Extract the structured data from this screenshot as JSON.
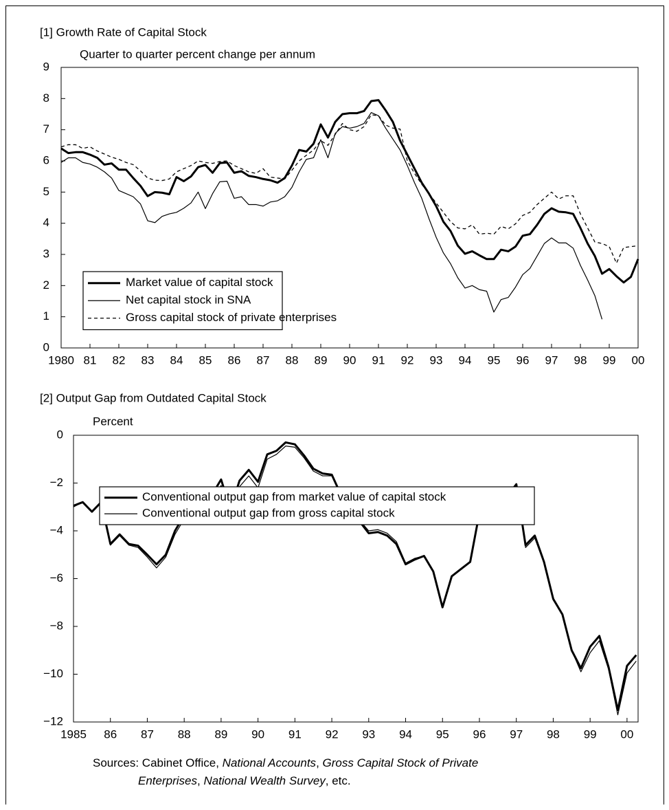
{
  "chart_data": [
    {
      "type": "line",
      "title": "[1] Growth Rate of Capital Stock",
      "ylabel": "Quarter to quarter percent change per annum",
      "x": [
        1980,
        1980.25,
        1980.5,
        1980.75,
        1981,
        1981.25,
        1981.5,
        1981.75,
        1982,
        1982.25,
        1982.5,
        1982.75,
        1983,
        1983.25,
        1983.5,
        1983.75,
        1984,
        1984.25,
        1984.5,
        1984.75,
        1985,
        1985.25,
        1985.5,
        1985.75,
        1986,
        1986.25,
        1986.5,
        1986.75,
        1987,
        1987.25,
        1987.5,
        1987.75,
        1988,
        1988.25,
        1988.5,
        1988.75,
        1989,
        1989.25,
        1989.5,
        1989.75,
        1990,
        1990.25,
        1990.5,
        1990.75,
        1991,
        1991.25,
        1991.5,
        1991.75,
        1992,
        1992.25,
        1992.5,
        1992.75,
        1993,
        1993.25,
        1993.5,
        1993.75,
        1994,
        1994.25,
        1994.5,
        1994.75,
        1995,
        1995.25,
        1995.5,
        1995.75,
        1996,
        1996.25,
        1996.5,
        1996.75,
        1997,
        1997.25,
        1997.5,
        1997.75,
        1998,
        1998.25,
        1998.5,
        1998.75,
        1999,
        1999.25,
        1999.5,
        1999.75,
        2000
      ],
      "series": [
        {
          "name": "Market value of capital stock",
          "color": "#000000",
          "style": "thick",
          "values": [
            6.4,
            6.25,
            6.28,
            6.28,
            6.2,
            6.1,
            5.88,
            5.92,
            5.72,
            5.72,
            5.45,
            5.2,
            4.87,
            5.0,
            4.98,
            4.93,
            5.48,
            5.35,
            5.5,
            5.8,
            5.87,
            5.62,
            5.93,
            5.95,
            5.62,
            5.67,
            5.52,
            5.48,
            5.42,
            5.38,
            5.3,
            5.45,
            5.85,
            6.35,
            6.3,
            6.55,
            7.17,
            6.75,
            7.25,
            7.5,
            7.53,
            7.53,
            7.6,
            7.92,
            7.95,
            7.62,
            7.25,
            6.65,
            6.2,
            5.75,
            5.3,
            4.95,
            4.55,
            4.05,
            3.75,
            3.28,
            3.02,
            3.1,
            2.97,
            2.85,
            2.85,
            3.15,
            3.1,
            3.25,
            3.6,
            3.65,
            3.95,
            4.3,
            4.48,
            4.37,
            4.35,
            4.3,
            3.85,
            3.35,
            2.95,
            2.38,
            2.53,
            2.3,
            2.1,
            2.28,
            2.85
          ]
        },
        {
          "name": "Net capital stock in SNA",
          "color": "#000000",
          "style": "thin",
          "values": [
            5.95,
            6.1,
            6.1,
            5.95,
            5.9,
            5.8,
            5.65,
            5.45,
            5.05,
            4.95,
            4.85,
            4.62,
            4.08,
            4.02,
            4.22,
            4.3,
            4.35,
            4.48,
            4.65,
            5.0,
            4.47,
            4.95,
            5.33,
            5.35,
            4.8,
            4.85,
            4.6,
            4.6,
            4.55,
            4.68,
            4.72,
            4.85,
            5.15,
            5.65,
            6.05,
            6.1,
            6.68,
            6.1,
            6.88,
            7.1,
            7.05,
            7.1,
            7.2,
            7.55,
            7.45,
            7.05,
            6.7,
            6.35,
            5.85,
            5.3,
            4.8,
            4.15,
            3.55,
            3.05,
            2.7,
            2.25,
            1.92,
            2.0,
            1.87,
            1.82,
            1.15,
            1.55,
            1.62,
            1.95,
            2.35,
            2.55,
            2.95,
            3.35,
            3.53,
            3.37,
            3.37,
            3.2,
            2.65,
            2.18,
            1.68,
            0.92,
            null,
            null,
            null,
            null,
            null
          ]
        },
        {
          "name": "Gross capital stock of private enterprises",
          "color": "#000000",
          "style": "dashed",
          "values": [
            6.45,
            6.52,
            6.52,
            6.4,
            6.45,
            6.32,
            6.22,
            6.12,
            6.05,
            5.95,
            5.88,
            5.68,
            5.45,
            5.38,
            5.37,
            5.42,
            5.65,
            5.75,
            5.85,
            6.0,
            5.95,
            5.92,
            5.98,
            6.0,
            5.85,
            5.75,
            5.65,
            5.6,
            5.75,
            5.48,
            5.45,
            5.42,
            5.7,
            6.0,
            6.18,
            6.35,
            6.65,
            6.5,
            6.85,
            7.2,
            7.0,
            6.95,
            7.1,
            7.48,
            7.45,
            7.15,
            7.05,
            7.02,
            6.0,
            5.6,
            5.25,
            4.95,
            4.65,
            4.35,
            4.05,
            3.85,
            3.82,
            3.95,
            3.65,
            3.68,
            3.65,
            3.9,
            3.82,
            3.98,
            4.25,
            4.35,
            4.6,
            4.8,
            5.0,
            4.78,
            4.88,
            4.88,
            4.3,
            3.85,
            3.4,
            3.35,
            3.25,
            2.72,
            3.22,
            3.25,
            3.28
          ]
        }
      ],
      "xlim": [
        1980,
        2000
      ],
      "ylim": [
        0,
        9
      ],
      "xticks": [
        1980,
        {
          "value": 1981,
          "label": "81"
        },
        {
          "value": 1982,
          "label": "82"
        },
        {
          "value": 1983,
          "label": "83"
        },
        {
          "value": 1984,
          "label": "84"
        },
        {
          "value": 1985,
          "label": "85"
        },
        {
          "value": 1986,
          "label": "86"
        },
        {
          "value": 1987,
          "label": "87"
        },
        {
          "value": 1988,
          "label": "88"
        },
        {
          "value": 1989,
          "label": "89"
        },
        {
          "value": 1990,
          "label": "90"
        },
        {
          "value": 1991,
          "label": "91"
        },
        {
          "value": 1992,
          "label": "92"
        },
        {
          "value": 1993,
          "label": "93"
        },
        {
          "value": 1994,
          "label": "94"
        },
        {
          "value": 1995,
          "label": "95"
        },
        {
          "value": 1996,
          "label": "96"
        },
        {
          "value": 1997,
          "label": "97"
        },
        {
          "value": 1998,
          "label": "98"
        },
        {
          "value": 1999,
          "label": "99"
        },
        {
          "value": 2000,
          "label": "00"
        }
      ],
      "yticks": [
        0,
        1,
        2,
        3,
        4,
        5,
        6,
        7,
        8,
        9
      ],
      "grid": false,
      "legend": "lower left"
    },
    {
      "type": "line",
      "title": "[2] Output Gap from Outdated Capital Stock",
      "ylabel": "Percent",
      "x": [
        1985,
        1985.25,
        1985.5,
        1985.75,
        1986,
        1986.25,
        1986.5,
        1986.75,
        1987,
        1987.25,
        1987.5,
        1987.75,
        1988,
        1988.25,
        1988.5,
        1988.75,
        1989,
        1989.25,
        1989.5,
        1989.75,
        1990,
        1990.25,
        1990.5,
        1990.75,
        1991,
        1991.25,
        1991.5,
        1991.75,
        1992,
        1992.25,
        1992.5,
        1992.75,
        1993,
        1993.25,
        1993.5,
        1993.75,
        1994,
        1994.25,
        1994.5,
        1994.75,
        1995,
        1995.25,
        1995.5,
        1995.75,
        1996,
        1996.25,
        1996.5,
        1996.75,
        1997,
        1997.25,
        1997.5,
        1997.75,
        1998,
        1998.25,
        1998.5,
        1998.75,
        1999,
        1999.25,
        1999.5,
        1999.75,
        2000,
        2000.25
      ],
      "series": [
        {
          "name": "Conventional output gap from market value of capital stock",
          "color": "#000000",
          "style": "thick",
          "values": [
            -2.95,
            -2.8,
            -3.2,
            -2.8,
            -4.55,
            -4.15,
            -4.55,
            -4.62,
            -5.0,
            -5.4,
            -5.0,
            -4.0,
            -3.35,
            -3.45,
            -2.45,
            -2.5,
            -1.85,
            -3.1,
            -1.9,
            -1.45,
            -1.95,
            -0.8,
            -0.65,
            -0.3,
            -0.38,
            -0.85,
            -1.4,
            -1.6,
            -1.65,
            -2.5,
            -3.25,
            -3.6,
            -4.1,
            -4.05,
            -4.2,
            -4.55,
            -5.4,
            -5.2,
            -5.05,
            -5.7,
            -7.2,
            -5.9,
            -5.6,
            -5.3,
            -3.25,
            -3.35,
            -3.55,
            -2.55,
            -2.05,
            -4.6,
            -4.2,
            -5.3,
            -6.85,
            -7.5,
            -9.0,
            -9.75,
            -8.85,
            -8.4,
            -9.7,
            -11.5,
            -9.65,
            -9.2
          ]
        },
        {
          "name": "Conventional output gap from gross capital stock",
          "color": "#000000",
          "style": "thin",
          "values": [
            -3.0,
            -2.8,
            -3.2,
            -2.8,
            -4.6,
            -4.2,
            -4.6,
            -4.7,
            -5.1,
            -5.55,
            -5.1,
            -4.15,
            -3.5,
            -3.65,
            -2.7,
            -2.75,
            -2.1,
            -3.3,
            -2.15,
            -1.7,
            -2.2,
            -1.0,
            -0.8,
            -0.45,
            -0.5,
            -0.95,
            -1.5,
            -1.7,
            -1.7,
            -2.55,
            -3.3,
            -3.55,
            -4.0,
            -3.95,
            -4.1,
            -4.45,
            -5.35,
            -5.15,
            -5.05,
            -5.7,
            -7.15,
            -5.9,
            -5.6,
            -5.3,
            -3.3,
            -3.4,
            -3.6,
            -2.7,
            -2.2,
            -4.7,
            -4.3,
            -5.35,
            -6.9,
            -7.5,
            -9.0,
            -9.9,
            -9.1,
            -8.6,
            -9.8,
            -11.7,
            -9.95,
            -9.45
          ]
        }
      ],
      "xlim": [
        1985,
        2000.3
      ],
      "ylim": [
        -12,
        0
      ],
      "xticks": [
        1985,
        {
          "value": 1986,
          "label": "86"
        },
        {
          "value": 1987,
          "label": "87"
        },
        {
          "value": 1988,
          "label": "88"
        },
        {
          "value": 1989,
          "label": "89"
        },
        {
          "value": 1990,
          "label": "90"
        },
        {
          "value": 1991,
          "label": "91"
        },
        {
          "value": 1992,
          "label": "92"
        },
        {
          "value": 1993,
          "label": "93"
        },
        {
          "value": 1994,
          "label": "94"
        },
        {
          "value": 1995,
          "label": "95"
        },
        {
          "value": 1996,
          "label": "96"
        },
        {
          "value": 1997,
          "label": "97"
        },
        {
          "value": 1998,
          "label": "98"
        },
        {
          "value": 1999,
          "label": "99"
        },
        {
          "value": 2000,
          "label": "00"
        }
      ],
      "yticks": [
        0,
        {
          "value": -2,
          "label": "−2"
        },
        {
          "value": -4,
          "label": "−4"
        },
        {
          "value": -6,
          "label": "−6"
        },
        {
          "value": -8,
          "label": "−8"
        },
        {
          "value": -10,
          "label": "−10"
        },
        {
          "value": -12,
          "label": "−12"
        }
      ],
      "grid": false,
      "legend": "lower left"
    }
  ],
  "sources": {
    "lines": [
      [
        {
          "text": "Sources: Cabinet Office, ",
          "italic": false
        },
        {
          "text": "National Accounts",
          "italic": true
        },
        {
          "text": ", ",
          "italic": false
        },
        {
          "text": "Gross Capital Stock of Private",
          "italic": true
        }
      ],
      [
        {
          "text": "Enterprises",
          "italic": true
        },
        {
          "text": ", ",
          "italic": false
        },
        {
          "text": "National Wealth Survey",
          "italic": true
        },
        {
          "text": ", etc.",
          "italic": false
        }
      ]
    ]
  }
}
